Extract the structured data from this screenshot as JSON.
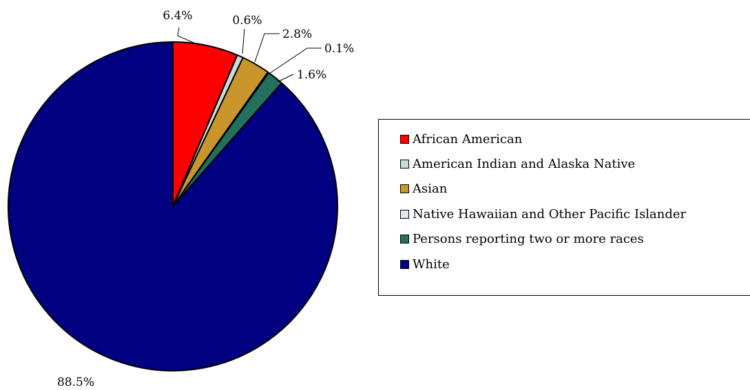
{
  "chart_data": {
    "type": "pie",
    "title": "",
    "categories": [
      "African American",
      "American Indian and Alaska Native",
      "Asian",
      "Native Hawaiian and Other Pacific Islander",
      "Persons reporting two or more races",
      "White"
    ],
    "values": [
      6.4,
      0.6,
      2.8,
      0.1,
      1.6,
      88.5
    ],
    "data_labels": [
      "6.4%",
      "0.6%",
      "2.8%",
      "0.1%",
      "1.6%",
      "88.5%"
    ],
    "colors": [
      "#ff0000",
      "#c6dfd6",
      "#c8962c",
      "#dde8ee",
      "#23705f",
      "#000080"
    ],
    "start_angle_deg": 0,
    "direction": "clockwise",
    "legend_position": "right"
  }
}
